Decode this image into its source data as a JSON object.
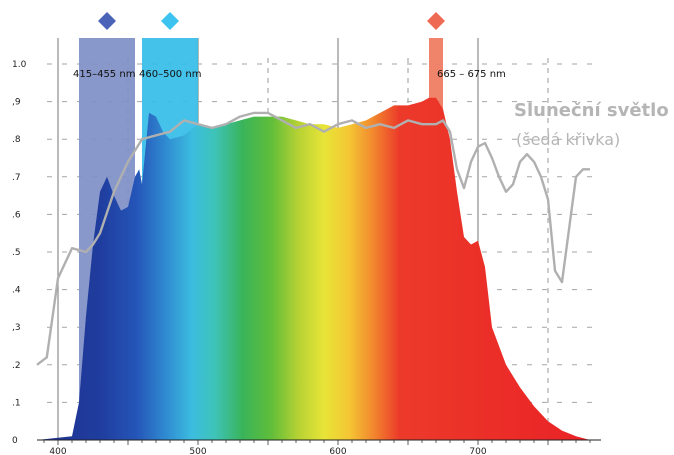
{
  "chart_data": {
    "type": "area",
    "xlim": [
      385,
      785
    ],
    "ylim": [
      0,
      1.0
    ],
    "x_ticks": [
      {
        "value": 400,
        "label": "400"
      },
      {
        "value": 500,
        "label": "500"
      },
      {
        "value": 600,
        "label": "600"
      },
      {
        "value": 700,
        "label": "700"
      }
    ],
    "y_ticks": [
      {
        "value": 0.0,
        "label": "0"
      },
      {
        "value": 0.1,
        "label": ".1"
      },
      {
        "value": 0.2,
        "label": ".2"
      },
      {
        "value": 0.3,
        "label": ",3"
      },
      {
        "value": 0.4,
        "label": ".4"
      },
      {
        "value": 0.5,
        "label": ".5"
      },
      {
        "value": 0.6,
        "label": ".6"
      },
      {
        "value": 0.7,
        "label": ".7"
      },
      {
        "value": 0.8,
        "label": ".8"
      },
      {
        "value": 0.9,
        "label": ",9"
      },
      {
        "value": 1.0,
        "label": "1.0"
      }
    ],
    "grid": {
      "solid_x": [
        400,
        500,
        600,
        700
      ],
      "dashed_x": [
        450,
        550,
        650,
        750
      ],
      "dashed_y": true
    },
    "bands": [
      {
        "label": "415–455 nm",
        "from": 415,
        "to": 455,
        "color": "#7f8fc6",
        "marker_color": "#4a64b8"
      },
      {
        "label": "460–500 nm",
        "from": 460,
        "to": 500,
        "color": "#35bde8",
        "marker_color": "#3cc3ef"
      },
      {
        "label": "665 – 675 nm",
        "from": 665,
        "to": 675,
        "color": "#ef7a5e",
        "marker_color": "#ef6a52"
      }
    ],
    "series": [
      {
        "name": "",
        "fill": "spectrum",
        "x": [
          385,
          410,
          415,
          420,
          425,
          430,
          435,
          440,
          445,
          450,
          455,
          458,
          460,
          465,
          470,
          475,
          480,
          490,
          500,
          510,
          520,
          530,
          540,
          550,
          560,
          570,
          580,
          590,
          600,
          610,
          620,
          630,
          640,
          650,
          660,
          665,
          670,
          675,
          680,
          685,
          690,
          695,
          700,
          705,
          710,
          720,
          730,
          740,
          750,
          760,
          770,
          780
        ],
        "y": [
          0.0,
          0.01,
          0.1,
          0.33,
          0.52,
          0.66,
          0.7,
          0.65,
          0.61,
          0.62,
          0.7,
          0.72,
          0.68,
          0.87,
          0.86,
          0.82,
          0.8,
          0.81,
          0.84,
          0.83,
          0.84,
          0.85,
          0.86,
          0.86,
          0.86,
          0.85,
          0.84,
          0.84,
          0.83,
          0.84,
          0.85,
          0.87,
          0.89,
          0.89,
          0.9,
          0.91,
          0.91,
          0.88,
          0.8,
          0.66,
          0.54,
          0.52,
          0.53,
          0.46,
          0.3,
          0.2,
          0.14,
          0.09,
          0.05,
          0.025,
          0.01,
          0.0
        ]
      },
      {
        "name": "Sluneční světlo",
        "note": "(šedá křivka)",
        "color": "#b0b0b0",
        "x": [
          385,
          392,
          400,
          410,
          420,
          425,
          430,
          440,
          450,
          455,
          460,
          470,
          480,
          490,
          500,
          510,
          520,
          530,
          540,
          550,
          560,
          570,
          580,
          590,
          600,
          610,
          620,
          630,
          640,
          650,
          660,
          670,
          675,
          680,
          685,
          690,
          695,
          700,
          705,
          710,
          715,
          720,
          725,
          730,
          735,
          740,
          745,
          750,
          755,
          760,
          765,
          770,
          775,
          780
        ],
        "y": [
          0.2,
          0.22,
          0.43,
          0.51,
          0.5,
          0.52,
          0.55,
          0.66,
          0.74,
          0.77,
          0.8,
          0.81,
          0.82,
          0.85,
          0.84,
          0.83,
          0.84,
          0.86,
          0.87,
          0.87,
          0.85,
          0.83,
          0.84,
          0.82,
          0.84,
          0.85,
          0.83,
          0.84,
          0.83,
          0.85,
          0.84,
          0.84,
          0.85,
          0.82,
          0.72,
          0.67,
          0.74,
          0.78,
          0.79,
          0.75,
          0.7,
          0.66,
          0.68,
          0.74,
          0.76,
          0.74,
          0.7,
          0.64,
          0.45,
          0.42,
          0.56,
          0.7,
          0.72,
          0.72
        ]
      }
    ],
    "legend": {
      "title": "Sluneční světlo",
      "subtitle": "(šedá křivka)",
      "position": "top-right"
    }
  }
}
